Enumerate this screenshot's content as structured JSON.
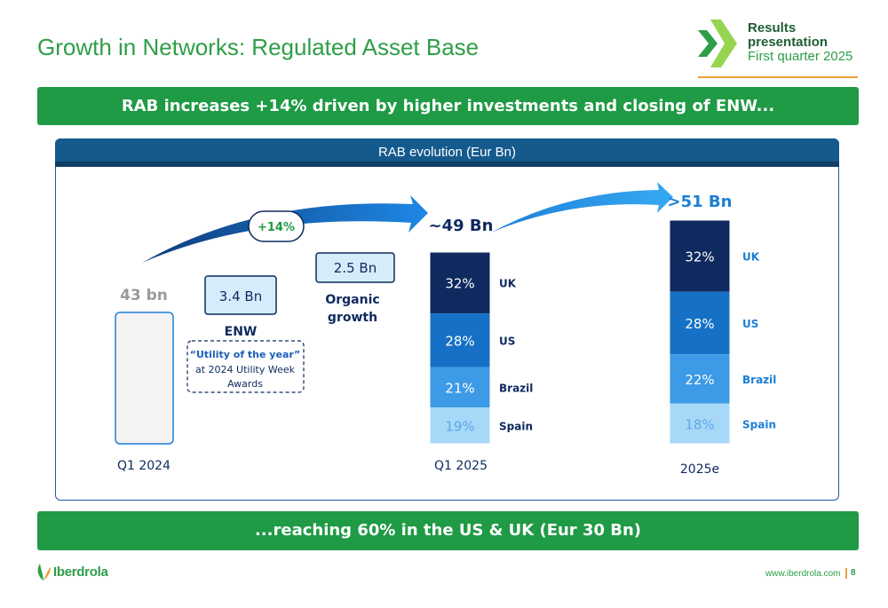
{
  "header": {
    "title": "Growth in Networks: Regulated Asset Base",
    "results_line1": "Results",
    "results_line2": "presentation",
    "results_line3": "First quarter 2025"
  },
  "banners": {
    "top": "RAB increases +14% driven by higher investments and closing of ENW...",
    "bottom": "...reaching 60% in the US & UK (Eur 30 Bn)"
  },
  "footer": {
    "brand": "Iberdrola",
    "url": "www.iberdrola.com",
    "page": "8"
  },
  "colors": {
    "green": "#1f9a45",
    "uk": "#0e2a5e",
    "us": "#1670c6",
    "brazil": "#3d9ae6",
    "spain": "#a8d8f8",
    "label_dark": "#0e2a5e",
    "label_light": "#1b7fd6"
  },
  "chart_data": {
    "type": "bar",
    "title": "RAB evolution (Eur Bn)",
    "growth_label": "+14%",
    "categories": [
      "Q1 2024",
      "Q1 2025",
      "2025e"
    ],
    "totals": [
      "43 bn",
      "~49 Bn",
      ">51 Bn"
    ],
    "values": [
      43,
      49,
      51
    ],
    "bridge": [
      {
        "value": 3.4,
        "value_label": "3.4 Bn",
        "name": "ENW",
        "note_bold": "“Utility of the year”",
        "note_rest_1": "at 2024 Utility Week",
        "note_rest_2": "Awards"
      },
      {
        "value": 2.5,
        "value_label": "2.5 Bn",
        "name_1": "Organic",
        "name_2": "growth"
      }
    ],
    "series": [
      {
        "name": "UK",
        "values": [
          null,
          32,
          32
        ],
        "labels": [
          "",
          "32%",
          "32%"
        ]
      },
      {
        "name": "US",
        "values": [
          null,
          28,
          28
        ],
        "labels": [
          "",
          "28%",
          "28%"
        ]
      },
      {
        "name": "Brazil",
        "values": [
          null,
          21,
          22
        ],
        "labels": [
          "",
          "21%",
          "22%"
        ]
      },
      {
        "name": "Spain",
        "values": [
          null,
          19,
          18
        ],
        "labels": [
          "",
          "19%",
          "18%"
        ]
      }
    ]
  }
}
